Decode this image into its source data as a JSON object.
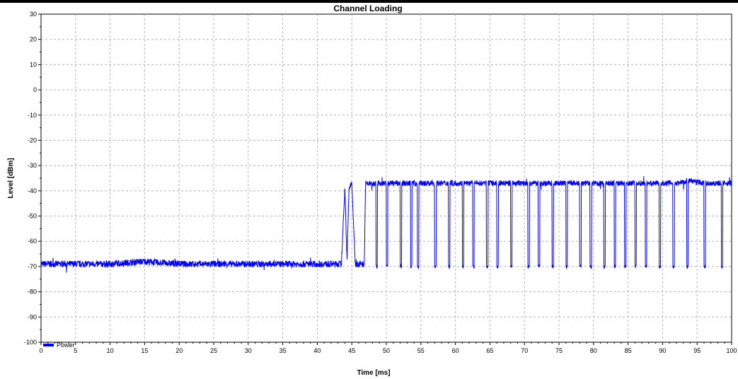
{
  "chart_data": {
    "type": "line",
    "title": "Channel Loading",
    "xlabel": "Time [ms]",
    "ylabel": "Level [dBm]",
    "xlim": [
      0,
      100
    ],
    "ylim": [
      -100,
      30
    ],
    "x_ticks": [
      "0",
      "5",
      "10",
      "15",
      "20",
      "25",
      "30",
      "35",
      "40",
      "45",
      "50",
      "55",
      "60",
      "65",
      "70",
      "75",
      "80",
      "85",
      "90",
      "95",
      "100"
    ],
    "y_ticks": [
      "30",
      "20",
      "10",
      "0",
      "-10",
      "-20",
      "-30",
      "-40",
      "-50",
      "-60",
      "-70",
      "-80",
      "-90",
      "-100"
    ],
    "grid": true,
    "legend_position": "bottom-left",
    "colors": {
      "series": "#0000ff",
      "grid": "#b4b4b4",
      "axis": "#000000"
    },
    "series": [
      {
        "name": "Power",
        "x": [
          0,
          5,
          10,
          15,
          20,
          25,
          30,
          35,
          40,
          43.5,
          44,
          44.3,
          44.6,
          45,
          45.5,
          46,
          46.8,
          47,
          48,
          49,
          50,
          51,
          52,
          53,
          54,
          55,
          56,
          58,
          60,
          62,
          64,
          66,
          68,
          70,
          72,
          74,
          76,
          78,
          80,
          82,
          84,
          86,
          88,
          90,
          92,
          94,
          96,
          98,
          99,
          100
        ],
        "y": [
          -69,
          -69,
          -69,
          -68,
          -69,
          -69,
          -69,
          -69,
          -69,
          -69,
          -38,
          -68,
          -39,
          -37,
          -69,
          -69,
          -69,
          -37,
          -37,
          -37,
          -37,
          -37,
          -37,
          -37,
          -37,
          -37,
          -37,
          -37,
          -37,
          -37,
          -37,
          -37,
          -37,
          -37,
          -37,
          -37,
          -37,
          -37,
          -37,
          -37,
          -37,
          -37,
          -37,
          -37,
          -37,
          -36,
          -37,
          -37,
          -37,
          -37
        ]
      }
    ],
    "bursts_drop_to": -70,
    "burst_gaps_x": [
      48.5,
      50,
      52,
      53.5,
      54.5,
      57,
      59,
      61,
      62.5,
      64.5,
      66,
      68,
      70.5,
      72,
      74,
      76,
      78,
      79.5,
      81.5,
      83,
      84.5,
      86,
      87.5,
      89.5,
      91.5,
      93.5,
      96,
      98.5
    ]
  }
}
